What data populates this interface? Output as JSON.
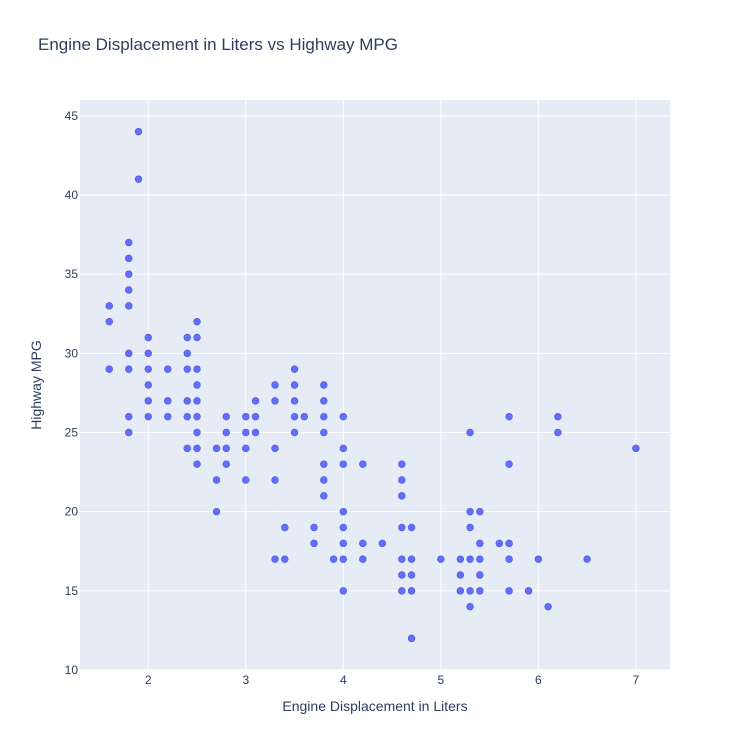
{
  "chart_data": {
    "type": "scatter",
    "title": "Engine Displacement in Liters vs Highway MPG",
    "xlabel": "Engine Displacement in Liters",
    "ylabel": "Highway MPG",
    "xlim": [
      1.3,
      7.35
    ],
    "ylim": [
      10,
      46
    ],
    "xticks": [
      2,
      3,
      4,
      5,
      6,
      7
    ],
    "yticks": [
      10,
      15,
      20,
      25,
      30,
      35,
      40,
      45
    ],
    "grid": true,
    "colors": {
      "marker": "#636efa",
      "plot_bg": "#e5ecf6",
      "grid": "#ffffff",
      "text": "#2a3f5f"
    },
    "series": [
      {
        "points": [
          [
            1.6,
            33
          ],
          [
            1.6,
            32
          ],
          [
            1.6,
            29
          ],
          [
            1.8,
            37
          ],
          [
            1.8,
            36
          ],
          [
            1.8,
            35
          ],
          [
            1.8,
            34
          ],
          [
            1.8,
            33
          ],
          [
            1.8,
            30
          ],
          [
            1.8,
            29
          ],
          [
            1.8,
            26
          ],
          [
            1.8,
            25
          ],
          [
            1.9,
            44
          ],
          [
            1.9,
            41
          ],
          [
            2.0,
            31
          ],
          [
            2.0,
            30
          ],
          [
            2.0,
            29
          ],
          [
            2.0,
            28
          ],
          [
            2.0,
            27
          ],
          [
            2.0,
            26
          ],
          [
            2.2,
            29
          ],
          [
            2.2,
            27
          ],
          [
            2.2,
            26
          ],
          [
            2.4,
            31
          ],
          [
            2.4,
            30
          ],
          [
            2.4,
            29
          ],
          [
            2.4,
            27
          ],
          [
            2.4,
            26
          ],
          [
            2.4,
            24
          ],
          [
            2.5,
            32
          ],
          [
            2.5,
            31
          ],
          [
            2.5,
            29
          ],
          [
            2.5,
            28
          ],
          [
            2.5,
            27
          ],
          [
            2.5,
            26
          ],
          [
            2.5,
            25
          ],
          [
            2.5,
            24
          ],
          [
            2.5,
            23
          ],
          [
            2.7,
            24
          ],
          [
            2.7,
            22
          ],
          [
            2.7,
            20
          ],
          [
            2.8,
            26
          ],
          [
            2.8,
            25
          ],
          [
            2.8,
            24
          ],
          [
            2.8,
            23
          ],
          [
            3.0,
            26
          ],
          [
            3.0,
            25
          ],
          [
            3.0,
            24
          ],
          [
            3.0,
            22
          ],
          [
            3.1,
            27
          ],
          [
            3.1,
            26
          ],
          [
            3.1,
            25
          ],
          [
            3.3,
            28
          ],
          [
            3.3,
            27
          ],
          [
            3.3,
            24
          ],
          [
            3.3,
            22
          ],
          [
            3.3,
            17
          ],
          [
            3.4,
            19
          ],
          [
            3.4,
            17
          ],
          [
            3.5,
            29
          ],
          [
            3.5,
            28
          ],
          [
            3.5,
            27
          ],
          [
            3.5,
            26
          ],
          [
            3.5,
            25
          ],
          [
            3.6,
            26
          ],
          [
            3.7,
            19
          ],
          [
            3.7,
            18
          ],
          [
            3.8,
            28
          ],
          [
            3.8,
            27
          ],
          [
            3.8,
            26
          ],
          [
            3.8,
            25
          ],
          [
            3.8,
            23
          ],
          [
            3.8,
            22
          ],
          [
            3.8,
            21
          ],
          [
            3.9,
            17
          ],
          [
            4.0,
            26
          ],
          [
            4.0,
            24
          ],
          [
            4.0,
            23
          ],
          [
            4.0,
            20
          ],
          [
            4.0,
            19
          ],
          [
            4.0,
            18
          ],
          [
            4.0,
            17
          ],
          [
            4.0,
            15
          ],
          [
            4.2,
            23
          ],
          [
            4.2,
            18
          ],
          [
            4.2,
            17
          ],
          [
            4.4,
            18
          ],
          [
            4.6,
            23
          ],
          [
            4.6,
            22
          ],
          [
            4.6,
            21
          ],
          [
            4.6,
            19
          ],
          [
            4.6,
            17
          ],
          [
            4.6,
            16
          ],
          [
            4.6,
            15
          ],
          [
            4.7,
            19
          ],
          [
            4.7,
            17
          ],
          [
            4.7,
            16
          ],
          [
            4.7,
            15
          ],
          [
            4.7,
            12
          ],
          [
            5.0,
            17
          ],
          [
            5.2,
            17
          ],
          [
            5.2,
            16
          ],
          [
            5.2,
            15
          ],
          [
            5.3,
            25
          ],
          [
            5.3,
            20
          ],
          [
            5.3,
            19
          ],
          [
            5.3,
            17
          ],
          [
            5.3,
            15
          ],
          [
            5.3,
            14
          ],
          [
            5.4,
            20
          ],
          [
            5.4,
            18
          ],
          [
            5.4,
            17
          ],
          [
            5.4,
            16
          ],
          [
            5.4,
            15
          ],
          [
            5.6,
            18
          ],
          [
            5.7,
            26
          ],
          [
            5.7,
            23
          ],
          [
            5.7,
            18
          ],
          [
            5.7,
            17
          ],
          [
            5.7,
            15
          ],
          [
            5.9,
            15
          ],
          [
            6.0,
            17
          ],
          [
            6.1,
            14
          ],
          [
            6.2,
            26
          ],
          [
            6.2,
            25
          ],
          [
            6.5,
            17
          ],
          [
            7.0,
            24
          ]
        ]
      }
    ]
  }
}
